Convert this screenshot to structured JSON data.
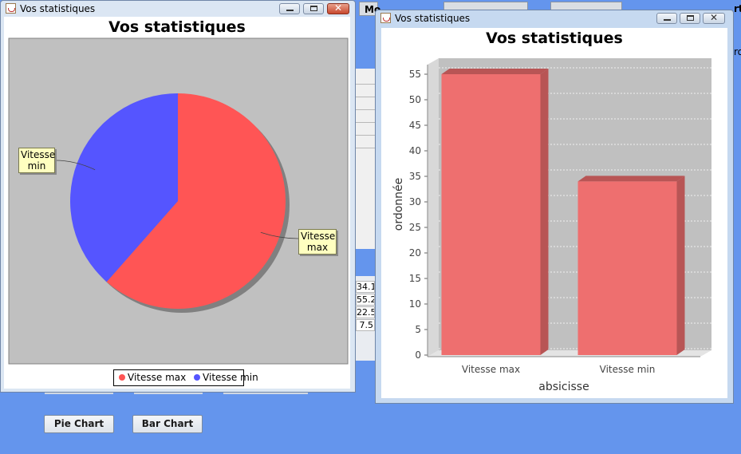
{
  "app": {
    "top_button_left": "Mo",
    "table_values": [
      "34.1",
      "55.2",
      "22.5",
      "7.5"
    ],
    "right_edge_text": "rt",
    "right_edge_text_2": "ro",
    "pie_button_label": "Pie Chart",
    "bar_button_label": "Bar Chart"
  },
  "pie_window": {
    "title": "Vos statistiques",
    "chart_title": "Vos statistiques"
  },
  "bar_window": {
    "title": "Vos statistiques",
    "chart_title": "Vos statistiques"
  },
  "colors": {
    "pie_max": "#FF5555",
    "pie_min": "#5555FF",
    "bar_fill": "#EE6F6F",
    "bar_dark": "#B85555",
    "plot_bg": "#C0C0C0"
  },
  "chart_data": [
    {
      "type": "pie",
      "title": "Vos statistiques",
      "categories": [
        "Vitesse max",
        "Vitesse min"
      ],
      "labels": [
        "Vitesse\nmax",
        "Vitesse\nmin"
      ],
      "values": [
        61.5,
        38.5
      ],
      "legend": "bottom"
    },
    {
      "type": "bar",
      "title": "Vos statistiques",
      "categories": [
        "Vitesse max",
        "Vitesse min"
      ],
      "values": [
        55,
        34
      ],
      "xlabel": "absicisse",
      "ylabel": "ordonnée",
      "ylim": [
        0,
        55
      ],
      "yticks": [
        "0",
        "5",
        "10",
        "15",
        "20",
        "25",
        "30",
        "35",
        "40",
        "45",
        "50",
        "55"
      ],
      "grid": true
    }
  ]
}
